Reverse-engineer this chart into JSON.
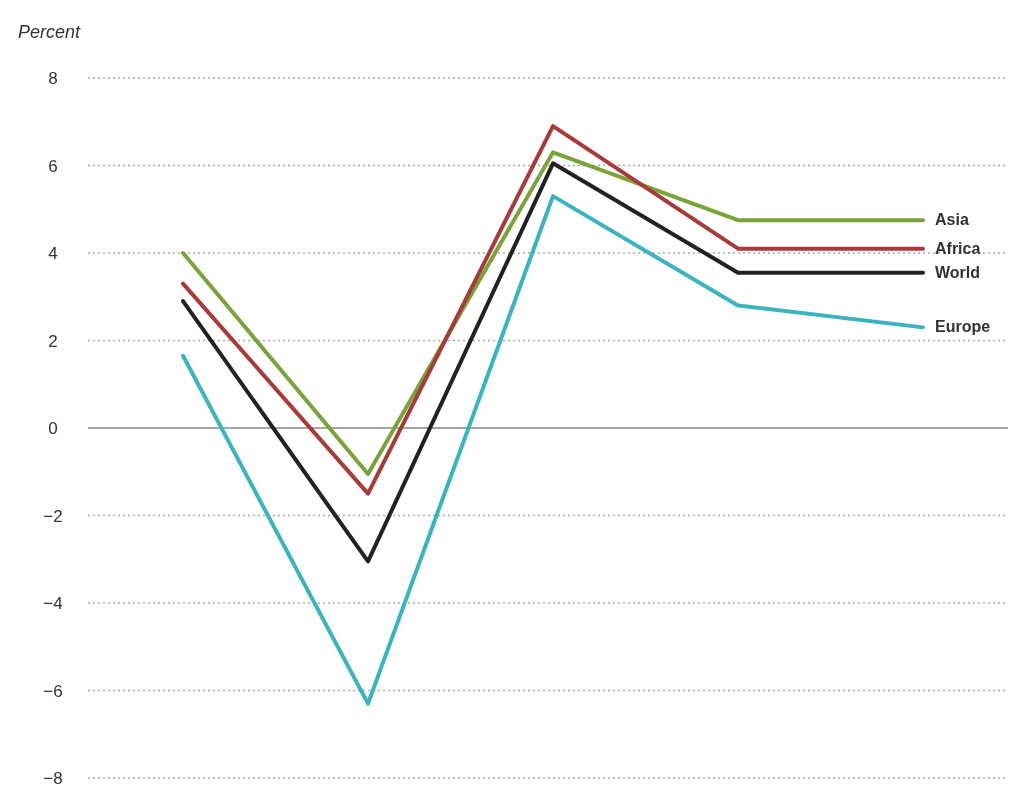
{
  "chart_data": {
    "type": "line",
    "ylabel": "Percent",
    "categories": [
      null,
      null,
      null,
      null,
      null
    ],
    "series": [
      {
        "name": "Asia",
        "color": "#7aa33a",
        "values": [
          4.0,
          -1.05,
          6.3,
          4.75,
          4.75
        ]
      },
      {
        "name": "Africa",
        "color": "#a83a3a",
        "values": [
          3.3,
          -1.5,
          6.9,
          4.1,
          4.1
        ]
      },
      {
        "name": "World",
        "color": "#222222",
        "values": [
          2.9,
          -3.05,
          6.05,
          3.55,
          3.55
        ]
      },
      {
        "name": "Europe",
        "color": "#3ab5bd",
        "values": [
          1.65,
          -6.3,
          5.3,
          2.8,
          2.3
        ]
      }
    ],
    "ylim": [
      -8,
      8
    ],
    "yticks": [
      -8,
      -6,
      -4,
      -2,
      0,
      2,
      4,
      6,
      8
    ],
    "grid": "y",
    "marker": "none",
    "line_style": "solid",
    "legend": false
  }
}
